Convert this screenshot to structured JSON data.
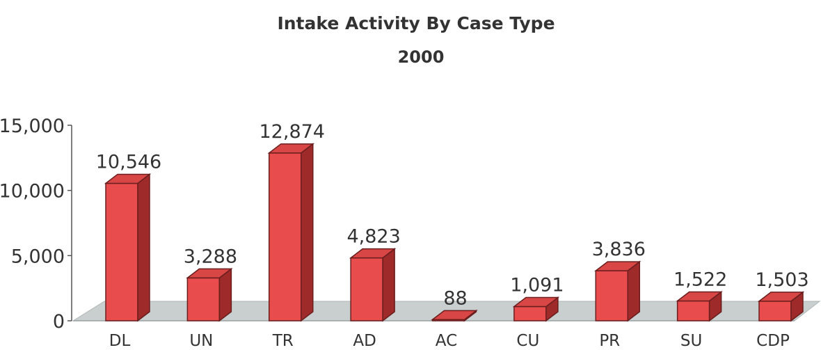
{
  "chart_data": {
    "type": "bar",
    "title": "Intake Activity By Case Type",
    "subtitle": "2000",
    "categories": [
      "DL",
      "UN",
      "TR",
      "AD",
      "AC",
      "CU",
      "PR",
      "SU",
      "CDP"
    ],
    "series": [
      {
        "values": [
          10546,
          3288,
          12874,
          4823,
          88,
          1091,
          3836,
          1522,
          1503
        ],
        "labels": [
          "10,546",
          "3,288",
          "12,874",
          "4,823",
          "88",
          "1,091",
          "3,836",
          "1,522",
          "1,503"
        ]
      }
    ],
    "y_ticks": [
      {
        "value": 0,
        "label": "0"
      },
      {
        "value": 5000,
        "label": "5,000"
      },
      {
        "value": 10000,
        "label": "10,000"
      },
      {
        "value": 15000,
        "label": "15,000"
      }
    ],
    "ylim": [
      0,
      15000
    ],
    "three_d": true,
    "grid": false,
    "legend": "none",
    "colors": {
      "bar_front": "#e84c4c",
      "bar_top": "#d94646",
      "bar_side": "#9e2a2a",
      "bar_edge": "#6a1e1e",
      "floor": "#c9cfcf",
      "axis": "#555555",
      "text": "#333333"
    }
  }
}
